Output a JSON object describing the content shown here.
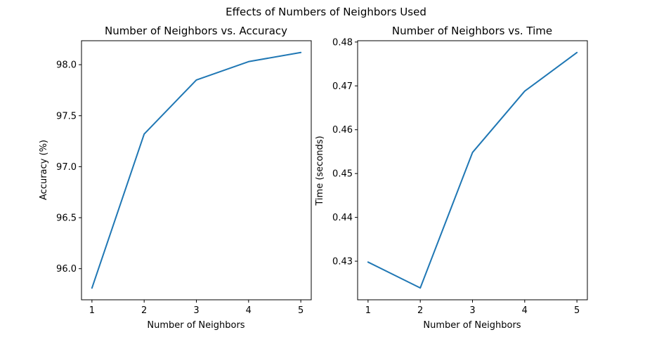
{
  "figure_title": "Effects of Numbers of Neighbors Used",
  "chart_data": [
    {
      "type": "line",
      "title": "Number of Neighbors vs. Accuracy",
      "xlabel": "Number of Neighbors",
      "ylabel": "Accuracy (%)",
      "x": [
        1,
        2,
        3,
        4,
        5
      ],
      "series": [
        {
          "values": [
            95.81,
            97.32,
            97.85,
            98.03,
            98.12
          ],
          "color": "#1f77b4"
        }
      ],
      "xticks": [
        1,
        2,
        3,
        4,
        5
      ],
      "yticks": [
        96.0,
        96.5,
        97.0,
        97.5,
        98.0
      ],
      "ytick_labels": [
        "96.0",
        "96.5",
        "97.0",
        "97.5",
        "98.0"
      ],
      "xlim": [
        0.8,
        5.2
      ],
      "ylim": [
        95.695,
        98.235
      ],
      "grid": false
    },
    {
      "type": "line",
      "title": "Number of Neighbors vs. Time",
      "xlabel": "Number of Neighbors",
      "ylabel": "Time (seconds)",
      "x": [
        1,
        2,
        3,
        4,
        5
      ],
      "series": [
        {
          "values": [
            0.4298,
            0.4239,
            0.4548,
            0.4688,
            0.4776
          ],
          "color": "#1f77b4"
        }
      ],
      "xticks": [
        1,
        2,
        3,
        4,
        5
      ],
      "yticks": [
        0.43,
        0.44,
        0.45,
        0.46,
        0.47,
        0.48
      ],
      "ytick_labels": [
        "0.43",
        "0.44",
        "0.45",
        "0.46",
        "0.47",
        "0.48"
      ],
      "xlim": [
        0.8,
        5.2
      ],
      "ylim": [
        0.4212,
        0.4803
      ],
      "grid": false
    }
  ]
}
